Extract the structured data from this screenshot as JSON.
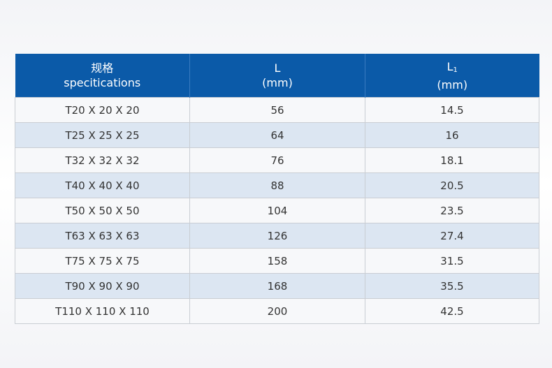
{
  "table": {
    "headers": [
      {
        "line1": "规格",
        "line2": "specitications"
      },
      {
        "line1": "L",
        "line2": "(mm)"
      },
      {
        "line1": "L",
        "sub": "1",
        "line2": "(mm)"
      }
    ],
    "rows": [
      [
        "T20 X 20 X 20",
        56,
        14.5
      ],
      [
        "T25 X 25 X 25",
        64,
        16
      ],
      [
        "T32 X 32 X 32",
        76,
        18.1
      ],
      [
        "T40 X 40 X 40",
        88,
        20.5
      ],
      [
        "T50 X 50 X 50",
        104,
        23.5
      ],
      [
        "T63 X 63 X 63",
        126,
        27.4
      ],
      [
        "T75 X 75 X 75",
        158,
        31.5
      ],
      [
        "T90 X 90 X 90",
        168,
        35.5
      ],
      [
        "T110 X 110 X 110",
        200,
        42.5
      ]
    ]
  }
}
